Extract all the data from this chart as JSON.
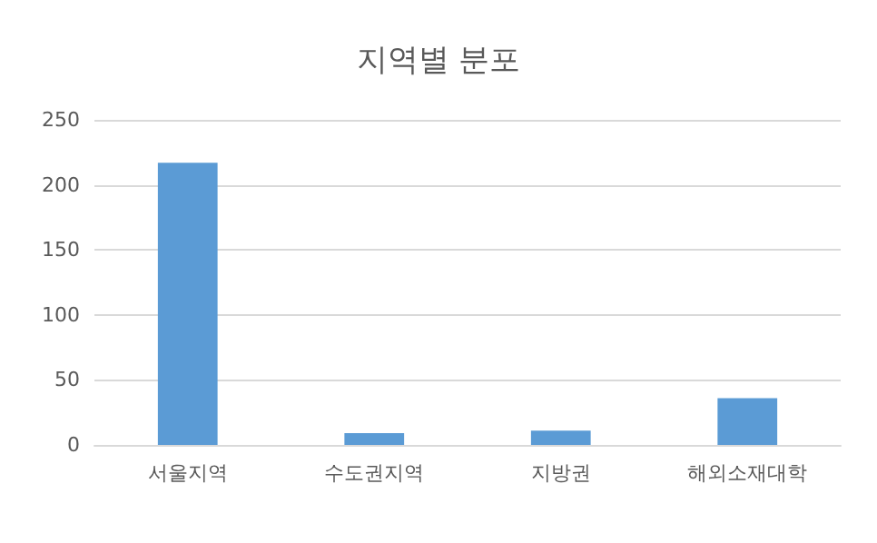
{
  "chart_data": {
    "type": "bar",
    "title": "지역별 분포",
    "categories": [
      "서울지역",
      "수도권지역",
      "지방권",
      "해외소재대학"
    ],
    "values": [
      217,
      9,
      11,
      36
    ],
    "color": "#5b9bd5",
    "ylim": [
      0,
      250
    ],
    "yticks": [
      0,
      50,
      100,
      150,
      200,
      250
    ],
    "grid": "y"
  }
}
